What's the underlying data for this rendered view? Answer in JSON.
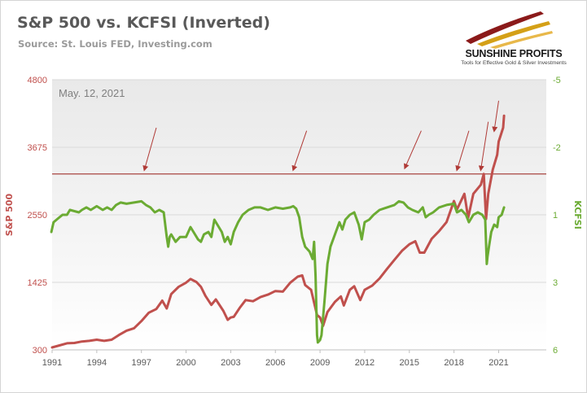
{
  "header": {
    "title": "S&P 500 vs. KCFSI (Inverted)",
    "source": "Source: St. Louis FED, Investing.com"
  },
  "logo": {
    "name": "SUNSHINE PROFITS",
    "tagline": "Tools for Effective Gold & Silver Investments",
    "colors": [
      "#8b1a1a",
      "#d4a017",
      "#e8b84a"
    ]
  },
  "chart_data": {
    "type": "line",
    "annotation": "May. 12, 2021",
    "x_ticks": [
      1991,
      1994,
      1997,
      2000,
      2003,
      2006,
      2009,
      2012,
      2015,
      2018,
      2021
    ],
    "xlim": [
      1991,
      2024.2
    ],
    "left_axis": {
      "label": "S&P 500",
      "ticks": [
        300,
        1425,
        2550,
        3675,
        4800
      ],
      "ylim": [
        300,
        4800
      ],
      "color": "#c0504d"
    },
    "right_axis": {
      "label": "KCFSI",
      "ticks": [
        -5,
        -2,
        1,
        3,
        6
      ],
      "ylim": [
        -5,
        6
      ],
      "inverted": true,
      "color": "#6bab33"
    },
    "horizontal_line": {
      "axis": "left",
      "value": 3230,
      "color": "#a0302c"
    },
    "arrows": [
      {
        "from": [
          1998.0,
          4000
        ],
        "to": [
          1997.2,
          3300
        ]
      },
      {
        "from": [
          2008.1,
          3950
        ],
        "to": [
          2007.2,
          3300
        ]
      },
      {
        "from": [
          2015.8,
          3950
        ],
        "to": [
          2014.7,
          3330
        ]
      },
      {
        "from": [
          2019.0,
          3950
        ],
        "to": [
          2018.2,
          3300
        ]
      },
      {
        "from": [
          2020.3,
          4100
        ],
        "to": [
          2019.8,
          3300
        ]
      },
      {
        "from": [
          2021.0,
          4450
        ],
        "to": [
          2020.7,
          3950
        ]
      }
    ],
    "series": [
      {
        "name": "S&P 500",
        "axis": "left",
        "color": "#c0504d",
        "points": [
          [
            1991.0,
            340
          ],
          [
            1991.5,
            375
          ],
          [
            1992.0,
            410
          ],
          [
            1992.5,
            415
          ],
          [
            1993.0,
            440
          ],
          [
            1993.5,
            450
          ],
          [
            1994.0,
            470
          ],
          [
            1994.5,
            450
          ],
          [
            1995.0,
            470
          ],
          [
            1995.5,
            550
          ],
          [
            1996.0,
            620
          ],
          [
            1996.5,
            660
          ],
          [
            1997.0,
            780
          ],
          [
            1997.5,
            920
          ],
          [
            1998.0,
            980
          ],
          [
            1998.4,
            1120
          ],
          [
            1998.7,
            990
          ],
          [
            1999.0,
            1230
          ],
          [
            1999.5,
            1350
          ],
          [
            2000.0,
            1420
          ],
          [
            2000.3,
            1480
          ],
          [
            2000.7,
            1430
          ],
          [
            2001.0,
            1350
          ],
          [
            2001.3,
            1200
          ],
          [
            2001.7,
            1050
          ],
          [
            2002.0,
            1140
          ],
          [
            2002.5,
            950
          ],
          [
            2002.8,
            800
          ],
          [
            2003.0,
            840
          ],
          [
            2003.2,
            850
          ],
          [
            2003.6,
            1000
          ],
          [
            2004.0,
            1130
          ],
          [
            2004.5,
            1110
          ],
          [
            2005.0,
            1180
          ],
          [
            2005.5,
            1220
          ],
          [
            2006.0,
            1280
          ],
          [
            2006.5,
            1270
          ],
          [
            2007.0,
            1420
          ],
          [
            2007.5,
            1520
          ],
          [
            2007.8,
            1540
          ],
          [
            2008.0,
            1380
          ],
          [
            2008.4,
            1300
          ],
          [
            2008.8,
            880
          ],
          [
            2009.0,
            840
          ],
          [
            2009.2,
            700
          ],
          [
            2009.5,
            930
          ],
          [
            2010.0,
            1100
          ],
          [
            2010.4,
            1190
          ],
          [
            2010.6,
            1040
          ],
          [
            2011.0,
            1300
          ],
          [
            2011.3,
            1360
          ],
          [
            2011.7,
            1130
          ],
          [
            2012.0,
            1300
          ],
          [
            2012.5,
            1370
          ],
          [
            2013.0,
            1490
          ],
          [
            2013.5,
            1650
          ],
          [
            2014.0,
            1800
          ],
          [
            2014.5,
            1950
          ],
          [
            2015.0,
            2060
          ],
          [
            2015.4,
            2110
          ],
          [
            2015.7,
            1920
          ],
          [
            2016.0,
            1920
          ],
          [
            2016.5,
            2150
          ],
          [
            2017.0,
            2280
          ],
          [
            2017.5,
            2430
          ],
          [
            2018.0,
            2780
          ],
          [
            2018.2,
            2640
          ],
          [
            2018.7,
            2900
          ],
          [
            2018.95,
            2500
          ],
          [
            2019.3,
            2900
          ],
          [
            2019.8,
            3050
          ],
          [
            2020.0,
            3230
          ],
          [
            2020.15,
            2480
          ],
          [
            2020.3,
            2900
          ],
          [
            2020.6,
            3300
          ],
          [
            2020.9,
            3550
          ],
          [
            2021.0,
            3770
          ],
          [
            2021.3,
            4000
          ],
          [
            2021.36,
            4200
          ]
        ]
      },
      {
        "name": "KCFSI",
        "axis": "right",
        "color": "#6bab33",
        "points": [
          [
            1990.95,
            1.2
          ],
          [
            1991.1,
            0.8
          ],
          [
            1991.3,
            0.7
          ],
          [
            1991.5,
            0.6
          ],
          [
            1991.7,
            0.5
          ],
          [
            1992.0,
            0.5
          ],
          [
            1992.2,
            0.3
          ],
          [
            1992.5,
            0.35
          ],
          [
            1992.8,
            0.4
          ],
          [
            1993.0,
            0.3
          ],
          [
            1993.3,
            0.2
          ],
          [
            1993.6,
            0.3
          ],
          [
            1994.0,
            0.15
          ],
          [
            1994.4,
            0.3
          ],
          [
            1994.7,
            0.2
          ],
          [
            1995.0,
            0.3
          ],
          [
            1995.3,
            0.1
          ],
          [
            1995.6,
            0.0
          ],
          [
            1996.0,
            0.05
          ],
          [
            1996.5,
            0.0
          ],
          [
            1997.0,
            -0.05
          ],
          [
            1997.3,
            0.1
          ],
          [
            1997.6,
            0.2
          ],
          [
            1997.9,
            0.4
          ],
          [
            1998.2,
            0.3
          ],
          [
            1998.5,
            0.4
          ],
          [
            1998.7,
            1.4
          ],
          [
            1998.8,
            1.8
          ],
          [
            1998.9,
            1.4
          ],
          [
            1999.0,
            1.3
          ],
          [
            1999.3,
            1.6
          ],
          [
            1999.6,
            1.4
          ],
          [
            2000.0,
            1.4
          ],
          [
            2000.3,
            1.0
          ],
          [
            2000.5,
            1.2
          ],
          [
            2000.8,
            1.5
          ],
          [
            2001.0,
            1.6
          ],
          [
            2001.2,
            1.3
          ],
          [
            2001.5,
            1.2
          ],
          [
            2001.7,
            1.4
          ],
          [
            2001.9,
            0.7
          ],
          [
            2002.2,
            1.0
          ],
          [
            2002.4,
            1.2
          ],
          [
            2002.6,
            1.6
          ],
          [
            2002.8,
            1.4
          ],
          [
            2003.0,
            1.7
          ],
          [
            2003.2,
            1.2
          ],
          [
            2003.5,
            0.8
          ],
          [
            2003.8,
            0.5
          ],
          [
            2004.2,
            0.3
          ],
          [
            2004.6,
            0.2
          ],
          [
            2005.0,
            0.2
          ],
          [
            2005.5,
            0.3
          ],
          [
            2006.0,
            0.2
          ],
          [
            2006.5,
            0.25
          ],
          [
            2007.0,
            0.2
          ],
          [
            2007.2,
            0.15
          ],
          [
            2007.4,
            0.25
          ],
          [
            2007.6,
            0.6
          ],
          [
            2007.8,
            1.4
          ],
          [
            2008.0,
            1.8
          ],
          [
            2008.3,
            2.0
          ],
          [
            2008.5,
            2.3
          ],
          [
            2008.6,
            1.6
          ],
          [
            2008.7,
            3.0
          ],
          [
            2008.8,
            5.4
          ],
          [
            2008.85,
            5.7
          ],
          [
            2009.0,
            5.6
          ],
          [
            2009.1,
            5.4
          ],
          [
            2009.3,
            4.0
          ],
          [
            2009.5,
            2.5
          ],
          [
            2009.7,
            1.8
          ],
          [
            2010.0,
            1.3
          ],
          [
            2010.3,
            0.8
          ],
          [
            2010.5,
            1.1
          ],
          [
            2010.7,
            0.7
          ],
          [
            2011.0,
            0.5
          ],
          [
            2011.3,
            0.4
          ],
          [
            2011.6,
            0.9
          ],
          [
            2011.8,
            1.5
          ],
          [
            2012.0,
            0.8
          ],
          [
            2012.3,
            0.7
          ],
          [
            2012.6,
            0.5
          ],
          [
            2013.0,
            0.3
          ],
          [
            2013.5,
            0.2
          ],
          [
            2014.0,
            0.1
          ],
          [
            2014.3,
            -0.05
          ],
          [
            2014.6,
            0.0
          ],
          [
            2014.9,
            0.2
          ],
          [
            2015.2,
            0.3
          ],
          [
            2015.6,
            0.4
          ],
          [
            2015.9,
            0.2
          ],
          [
            2016.1,
            0.6
          ],
          [
            2016.3,
            0.5
          ],
          [
            2016.6,
            0.4
          ],
          [
            2017.0,
            0.2
          ],
          [
            2017.5,
            0.1
          ],
          [
            2018.0,
            0.05
          ],
          [
            2018.2,
            0.4
          ],
          [
            2018.5,
            0.3
          ],
          [
            2018.8,
            0.5
          ],
          [
            2019.0,
            0.8
          ],
          [
            2019.3,
            0.5
          ],
          [
            2019.6,
            0.4
          ],
          [
            2019.9,
            0.5
          ],
          [
            2020.1,
            0.7
          ],
          [
            2020.2,
            2.5
          ],
          [
            2020.25,
            2.2
          ],
          [
            2020.35,
            1.8
          ],
          [
            2020.5,
            1.2
          ],
          [
            2020.7,
            0.9
          ],
          [
            2020.9,
            1.0
          ],
          [
            2021.0,
            0.6
          ],
          [
            2021.2,
            0.5
          ],
          [
            2021.36,
            0.2
          ]
        ]
      }
    ]
  }
}
